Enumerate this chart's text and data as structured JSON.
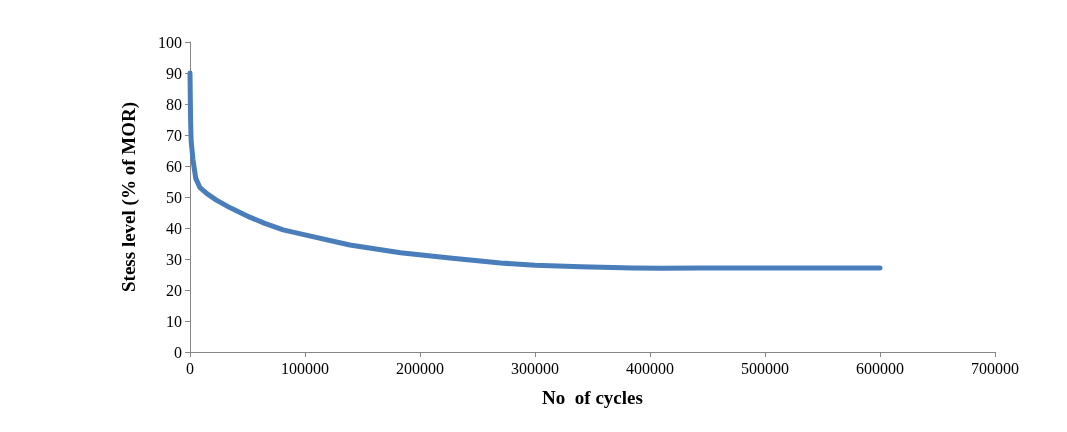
{
  "chart_data": {
    "type": "line",
    "xlabel": "No  of cycles",
    "ylabel": "Stess level (% of MOR)",
    "x": [
      0,
      500,
      1000,
      2600,
      5000,
      8700,
      15000,
      23000,
      35000,
      52000,
      65000,
      81000,
      100000,
      139000,
      183000,
      226000,
      270000,
      300000,
      340000,
      385000,
      410000,
      443000,
      500000,
      550000,
      600000
    ],
    "series": [
      {
        "color": "#4a7ebb",
        "values": [
          90,
          75,
          68,
          62,
          56,
          53,
          51,
          49,
          46.5,
          43.5,
          41.5,
          39.4,
          37.8,
          34.5,
          32.0,
          30.3,
          28.7,
          28.0,
          27.5,
          27.1,
          27.0,
          27.1,
          27.1,
          27.1,
          27.1
        ]
      }
    ],
    "xlim": [
      0,
      700000
    ],
    "xticks": [
      0,
      100000,
      200000,
      300000,
      400000,
      500000,
      600000,
      700000
    ],
    "ylim": [
      0,
      100
    ],
    "yticks": [
      0,
      10,
      20,
      30,
      40,
      50,
      60,
      70,
      80,
      90,
      100
    ],
    "grid": false,
    "marker": "none",
    "line_style": "solid"
  }
}
